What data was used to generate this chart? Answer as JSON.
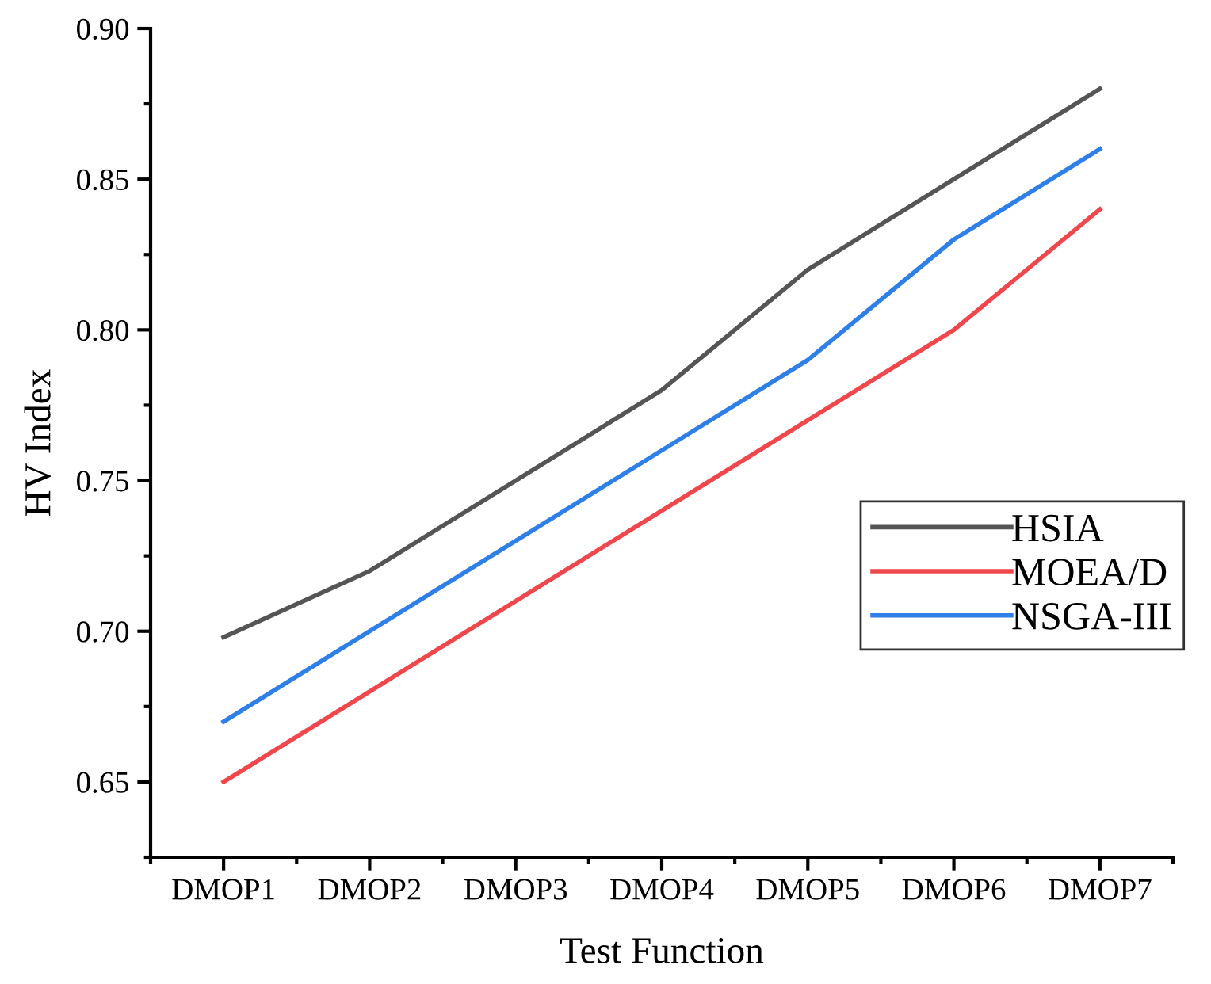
{
  "chart_data": {
    "type": "line",
    "xlabel": "Test Function",
    "ylabel": "HV Index",
    "categories": [
      "DMOP1",
      "DMOP2",
      "DMOP3",
      "DMOP4",
      "DMOP5",
      "DMOP6",
      "DMOP7"
    ],
    "series": [
      {
        "name": "HSIA",
        "color": "#555555",
        "values": [
          0.698,
          0.72,
          0.75,
          0.78,
          0.82,
          0.85,
          0.88
        ]
      },
      {
        "name": "MOEA/D",
        "color": "#f0474c",
        "values": [
          0.65,
          0.68,
          0.71,
          0.74,
          0.77,
          0.8,
          0.84
        ]
      },
      {
        "name": "NSGA-III",
        "color": "#2f7fe8",
        "values": [
          0.67,
          0.7,
          0.73,
          0.76,
          0.79,
          0.83,
          0.86
        ]
      }
    ],
    "ylim": [
      0.625,
      0.9
    ],
    "yticks": [
      {
        "value": 0.65,
        "label": "0.65"
      },
      {
        "value": 0.7,
        "label": "0.70"
      },
      {
        "value": 0.75,
        "label": "0.75"
      },
      {
        "value": 0.8,
        "label": "0.80"
      },
      {
        "value": 0.85,
        "label": "0.85"
      },
      {
        "value": 0.9,
        "label": "0.90"
      }
    ],
    "grid": false,
    "legend": "right",
    "marker": "none",
    "line_style": "solid"
  }
}
